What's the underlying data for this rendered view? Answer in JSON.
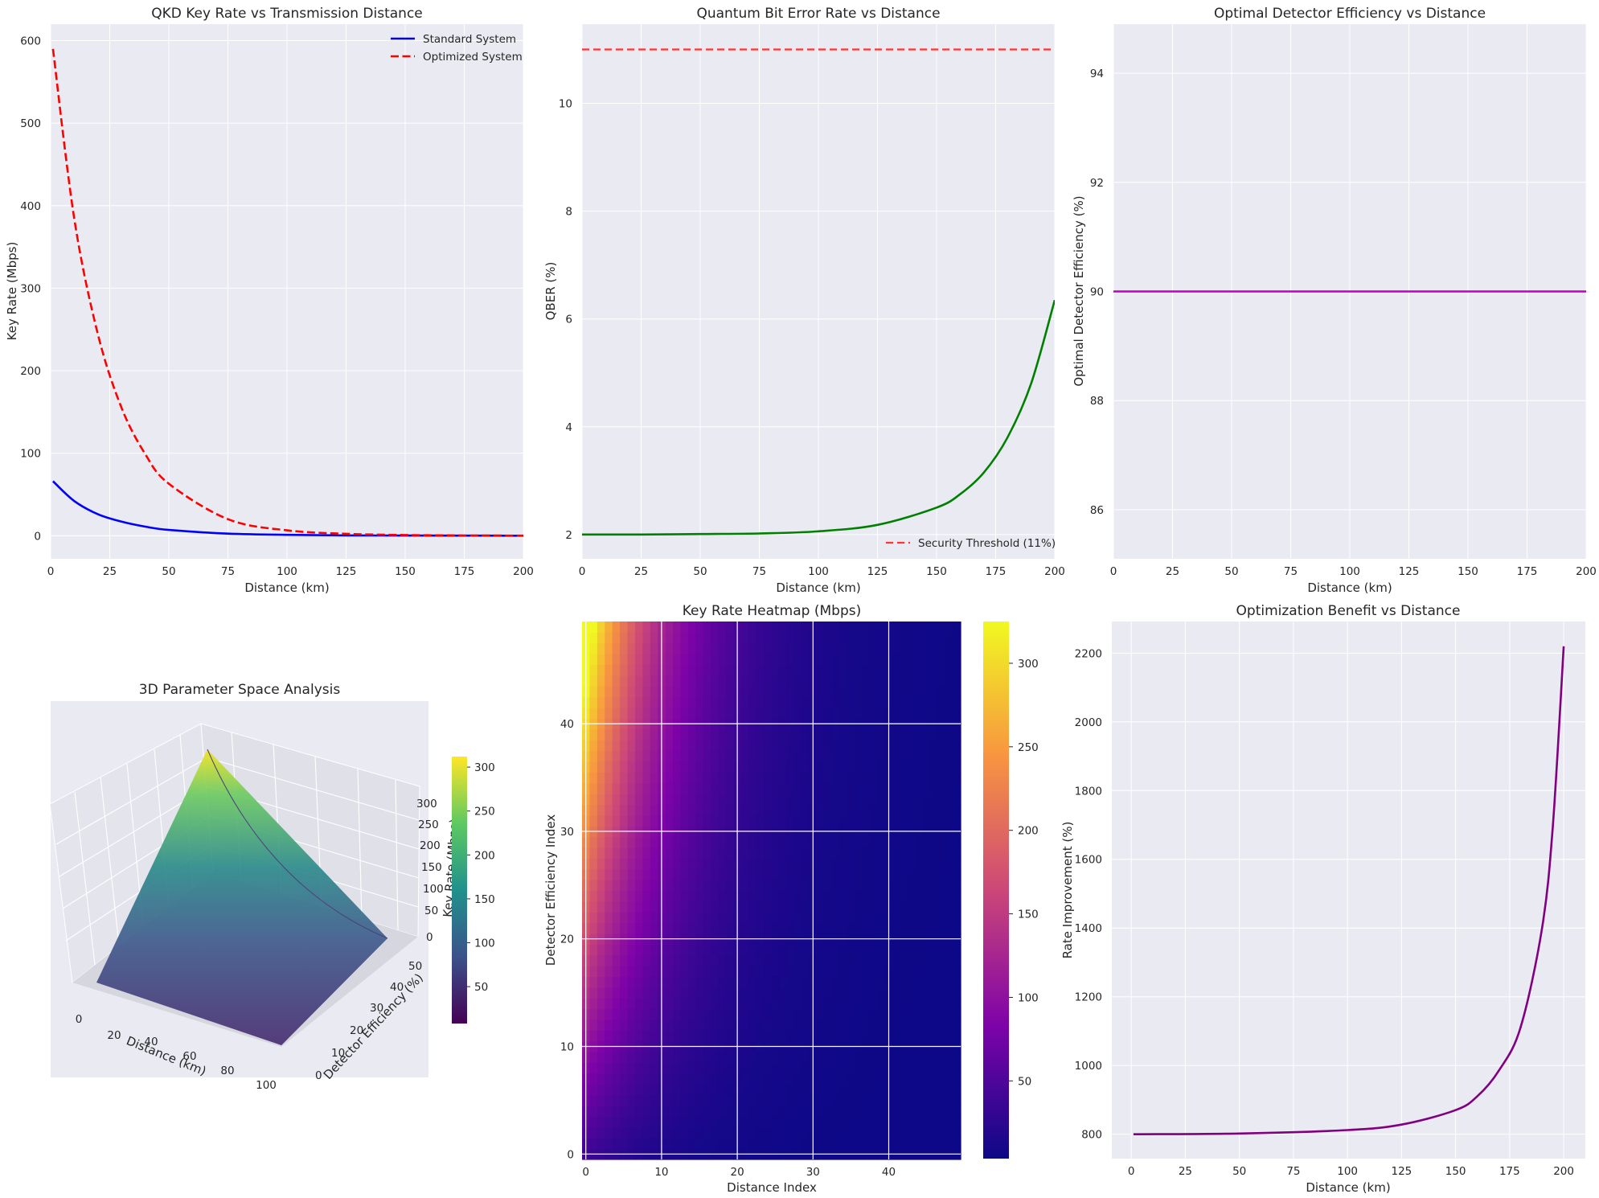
{
  "colors": {
    "axes_bg": "#eaeaf2",
    "grid": "#ffffff",
    "text": "#262626",
    "standard": "#0000ff",
    "optimized": "#ff0000",
    "qber": "#008000",
    "threshold": "#ff3333",
    "efficiency": "#bf00bf",
    "benefit": "#800080"
  },
  "panels": [
    {
      "id": "key-rate",
      "title": "QKD Key Rate vs Transmission Distance",
      "xlabel": "Distance (km)",
      "ylabel": "Key Rate (Mbps)",
      "xlim": [
        0,
        200
      ],
      "ylim": [
        -28,
        620
      ],
      "xticks": [
        0,
        25,
        50,
        75,
        100,
        125,
        150,
        175,
        200
      ],
      "yticks": [
        0,
        100,
        200,
        300,
        400,
        500,
        600
      ],
      "legend": [
        "Standard System",
        "Optimized System"
      ]
    },
    {
      "id": "qber",
      "title": "Quantum Bit Error Rate vs Distance",
      "xlabel": "Distance (km)",
      "ylabel": "QBER (%)",
      "xlim": [
        0,
        200
      ],
      "ylim": [
        1.55,
        11.47
      ],
      "xticks": [
        0,
        25,
        50,
        75,
        100,
        125,
        150,
        175,
        200
      ],
      "yticks": [
        2,
        4,
        6,
        8,
        10
      ],
      "legend": [
        "Security Threshold (11%)"
      ]
    },
    {
      "id": "efficiency",
      "title": "Optimal Detector Efficiency vs Distance",
      "xlabel": "Distance (km)",
      "ylabel": "Optimal Detector Efficiency (%)",
      "xlim": [
        0,
        200
      ],
      "ylim": [
        85.1,
        94.9
      ],
      "xticks": [
        0,
        25,
        50,
        75,
        100,
        125,
        150,
        175,
        200
      ],
      "yticks": [
        86,
        88,
        90,
        92,
        94
      ]
    },
    {
      "id": "surface-3d",
      "title": "3D Parameter Space Analysis",
      "xlabel": "Distance (km)",
      "ylabel": "Detector Efficiency (%)",
      "zlabel": "Key Rate (Mbps)",
      "xticks": [
        0,
        20,
        40,
        60,
        80,
        100
      ],
      "yticks": [
        0,
        10,
        20,
        30,
        40,
        50
      ],
      "zticks": [
        0,
        50,
        100,
        150,
        200,
        250,
        300
      ],
      "colorbar_ticks": [
        50,
        100,
        150,
        200,
        250,
        300
      ]
    },
    {
      "id": "heatmap",
      "title": "Key Rate Heatmap (Mbps)",
      "xlabel": "Distance Index",
      "ylabel": "Detector Efficiency Index",
      "xticks": [
        0,
        10,
        20,
        30,
        40
      ],
      "yticks": [
        0,
        10,
        20,
        30,
        40
      ],
      "colorbar_ticks": [
        50,
        100,
        150,
        200,
        250,
        300
      ]
    },
    {
      "id": "benefit",
      "title": "Optimization Benefit vs Distance",
      "xlabel": "Distance (km)",
      "ylabel": "Rate Improvement (%)",
      "xlim": [
        -9,
        210
      ],
      "ylim": [
        729,
        2292
      ],
      "xticks": [
        0,
        25,
        50,
        75,
        100,
        125,
        150,
        175,
        200
      ],
      "yticks": [
        800,
        1000,
        1200,
        1400,
        1600,
        1800,
        2000,
        2200
      ]
    }
  ],
  "chart_data": [
    {
      "type": "line",
      "title": "QKD Key Rate vs Transmission Distance",
      "xlabel": "Distance (km)",
      "ylabel": "Key Rate (Mbps)",
      "x": [
        1,
        10,
        20,
        30,
        40,
        50,
        75,
        100,
        125,
        150,
        175,
        200
      ],
      "series": [
        {
          "name": "Standard System",
          "values": [
            66,
            42,
            26,
            17,
            11,
            7,
            2.5,
            1,
            0.4,
            0.2,
            0.1,
            0.0
          ]
        },
        {
          "name": "Optimized System",
          "values": [
            590,
            384,
            244,
            155,
            99,
            63,
            20,
            6.5,
            2.3,
            0.8,
            0.3,
            0.1
          ]
        }
      ],
      "xlim": [
        0,
        200
      ],
      "ylim": [
        -28,
        620
      ],
      "grid": true,
      "legend": "top-right"
    },
    {
      "type": "line",
      "title": "Quantum Bit Error Rate vs Distance",
      "xlabel": "Distance (km)",
      "ylabel": "QBER (%)",
      "x": [
        0,
        25,
        50,
        75,
        100,
        125,
        150,
        160,
        170,
        180,
        190,
        200
      ],
      "series": [
        {
          "name": "QBER",
          "values": [
            2.0,
            2.0,
            2.01,
            2.02,
            2.06,
            2.18,
            2.5,
            2.75,
            3.15,
            3.8,
            4.8,
            6.35
          ]
        },
        {
          "name": "Security Threshold (11%)",
          "values": [
            11,
            11,
            11,
            11,
            11,
            11,
            11,
            11,
            11,
            11,
            11,
            11
          ]
        }
      ],
      "xlim": [
        0,
        200
      ],
      "ylim": [
        1.55,
        11.47
      ],
      "grid": true,
      "legend": "bottom-right"
    },
    {
      "type": "line",
      "title": "Optimal Detector Efficiency vs Distance",
      "xlabel": "Distance (km)",
      "ylabel": "Optimal Detector Efficiency (%)",
      "x": [
        0,
        200
      ],
      "series": [
        {
          "name": "Optimal Efficiency",
          "values": [
            90,
            90
          ]
        }
      ],
      "xlim": [
        0,
        200
      ],
      "ylim": [
        85.1,
        94.9
      ],
      "grid": true
    },
    {
      "type": "area",
      "title": "3D Parameter Space Analysis",
      "xlabel": "Distance (km)",
      "ylabel": "Detector Efficiency (%)",
      "zlabel": "Key Rate (Mbps)",
      "x_range": [
        0,
        100
      ],
      "y_range": [
        0,
        50
      ],
      "z_range": [
        0,
        320
      ],
      "peak": {
        "x": 0,
        "y": 50,
        "z": 310
      },
      "colormap": "viridis"
    },
    {
      "type": "heatmap",
      "title": "Key Rate Heatmap (Mbps)",
      "xlabel": "Distance Index",
      "ylabel": "Detector Efficiency Index",
      "x_range": [
        0,
        49
      ],
      "y_range": [
        0,
        49
      ],
      "value_range": [
        3,
        325
      ],
      "colormap": "plasma",
      "row_top_values": [
        325,
        240,
        175,
        128,
        95,
        70,
        52,
        38,
        28,
        21,
        16
      ],
      "col_indices": [
        0,
        5,
        10,
        15,
        20,
        25,
        30,
        35,
        40,
        45,
        49
      ]
    },
    {
      "type": "line",
      "title": "Optimization Benefit vs Distance",
      "xlabel": "Distance (km)",
      "ylabel": "Rate Improvement (%)",
      "x": [
        1,
        50,
        100,
        125,
        150,
        160,
        170,
        180,
        190,
        195,
        200
      ],
      "series": [
        {
          "name": "Rate Improvement",
          "values": [
            800,
            802,
            812,
            828,
            870,
            910,
            985,
            1110,
            1400,
            1700,
            2220
          ]
        }
      ],
      "xlim": [
        -9,
        210
      ],
      "ylim": [
        729,
        2292
      ],
      "grid": true
    }
  ]
}
